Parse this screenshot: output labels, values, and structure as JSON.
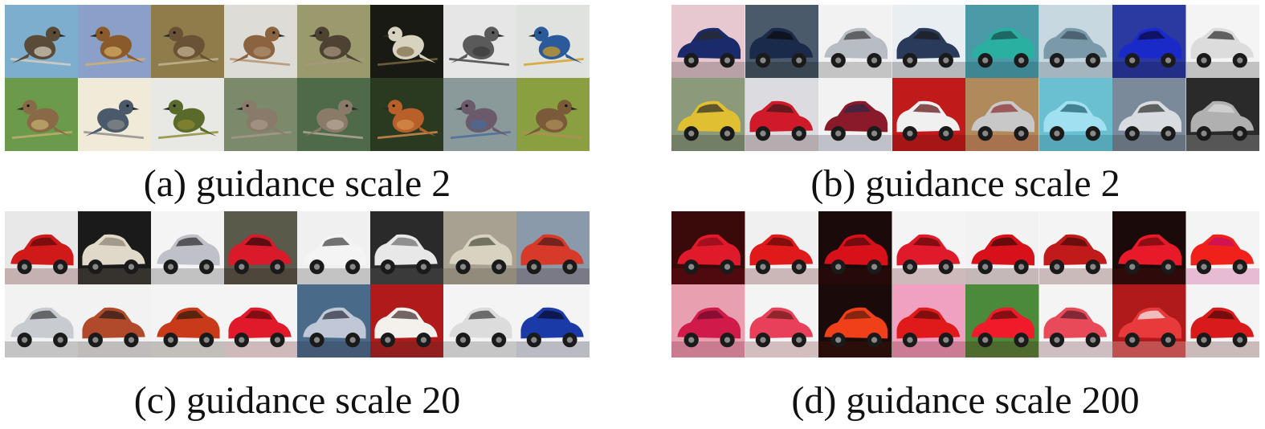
{
  "panels": [
    {
      "id": "a",
      "caption": "(a) guidance scale 2",
      "subject": "bird",
      "tiles": [
        {
          "bg": "#7eaecd",
          "fg": "#5a4a38",
          "accent": "#d9d2c0"
        },
        {
          "bg": "#8aa0c8",
          "fg": "#8a5a2a",
          "accent": "#d8b06a"
        },
        {
          "bg": "#8e7c4a",
          "fg": "#6a5236",
          "accent": "#c8b896"
        },
        {
          "bg": "#dedcd6",
          "fg": "#8a6440",
          "accent": "#b09070"
        },
        {
          "bg": "#9a9a6c",
          "fg": "#4e4232",
          "accent": "#a89880"
        },
        {
          "bg": "#1a1a14",
          "fg": "#d8d2c0",
          "accent": "#7a6a40"
        },
        {
          "bg": "#e6e6e6",
          "fg": "#5a5a5a",
          "accent": "#3a3a3a"
        },
        {
          "bg": "#e0e2e0",
          "fg": "#2a5a9a",
          "accent": "#d8a020"
        },
        {
          "bg": "#6a9a4a",
          "fg": "#8a6a46",
          "accent": "#c8b070"
        },
        {
          "bg": "#f2ead8",
          "fg": "#4a5a6a",
          "accent": "#8a8a8a"
        },
        {
          "bg": "#e8e8e4",
          "fg": "#5a6a2a",
          "accent": "#8a8a30"
        },
        {
          "bg": "#7a8a6a",
          "fg": "#8a7a6a",
          "accent": "#a89a8a"
        },
        {
          "bg": "#4e6a48",
          "fg": "#8a7a68",
          "accent": "#b8aa98"
        },
        {
          "bg": "#2a3a20",
          "fg": "#b8602a",
          "accent": "#d89050"
        },
        {
          "bg": "#8a9a9a",
          "fg": "#6a5a6a",
          "accent": "#4a6a9a"
        },
        {
          "bg": "#8aa040",
          "fg": "#7a5a38",
          "accent": "#b0905a"
        }
      ]
    },
    {
      "id": "b",
      "caption": "(b) guidance scale 2",
      "subject": "car",
      "tiles": [
        {
          "bg": "#e8c8d0",
          "fg": "#1a2a6a",
          "accent": "#2a2a2a"
        },
        {
          "bg": "#4a5a6a",
          "fg": "#1a2a4a",
          "accent": "#0a0a0a"
        },
        {
          "bg": "#f2f2f2",
          "fg": "#b8bcc4",
          "accent": "#3a3a3a"
        },
        {
          "bg": "#e8eef2",
          "fg": "#2a3a5a",
          "accent": "#1a1a1a"
        },
        {
          "bg": "#4a9aa8",
          "fg": "#2ab0a0",
          "accent": "#1a4a4a"
        },
        {
          "bg": "#c8d8e0",
          "fg": "#7a9aaa",
          "accent": "#3a4a5a"
        },
        {
          "bg": "#2a3aa0",
          "fg": "#1a2ac8",
          "accent": "#0a0a3a"
        },
        {
          "bg": "#f4f4f4",
          "fg": "#dcdcdc",
          "accent": "#2a2a2a"
        },
        {
          "bg": "#8a9a7a",
          "fg": "#e0c030",
          "accent": "#2a2a2a"
        },
        {
          "bg": "#dcdce0",
          "fg": "#d01a2a",
          "accent": "#3a1a1a"
        },
        {
          "bg": "#f2f2f2",
          "fg": "#8a1a2a",
          "accent": "#2a2a4a"
        },
        {
          "bg": "#c01a1a",
          "fg": "#f0f0f0",
          "accent": "#5a0a0a"
        },
        {
          "bg": "#b08a5a",
          "fg": "#c8c8c8",
          "accent": "#8a2a2a"
        },
        {
          "bg": "#6ac0d0",
          "fg": "#a0e0f0",
          "accent": "#1a5a6a"
        },
        {
          "bg": "#7a8a9a",
          "fg": "#d8dce0",
          "accent": "#2a2a2a"
        },
        {
          "bg": "#2a2a2a",
          "fg": "#b0b0b0",
          "accent": "#dcdcdc"
        }
      ]
    },
    {
      "id": "c",
      "caption": "(c) guidance scale 20",
      "subject": "car",
      "tiles": [
        {
          "bg": "#e8e8e8",
          "fg": "#d01a1a",
          "accent": "#5a0a0a"
        },
        {
          "bg": "#1a1a1a",
          "fg": "#e0d8c8",
          "accent": "#8a8070"
        },
        {
          "bg": "#f4f4f4",
          "fg": "#c0c0c8",
          "accent": "#2a2a2a"
        },
        {
          "bg": "#5a5a4a",
          "fg": "#d81a2a",
          "accent": "#2a0a0a"
        },
        {
          "bg": "#f0f0f0",
          "fg": "#f4f4f4",
          "accent": "#3a3a3a"
        },
        {
          "bg": "#2a2a2a",
          "fg": "#e8e8e8",
          "accent": "#6a6a6a"
        },
        {
          "bg": "#a8a090",
          "fg": "#d8d2c0",
          "accent": "#4a4a3a"
        },
        {
          "bg": "#8a9aaa",
          "fg": "#d83a2a",
          "accent": "#4a1a1a"
        },
        {
          "bg": "#f2f2f2",
          "fg": "#c8ccd0",
          "accent": "#3a3a3a"
        },
        {
          "bg": "#f2f2f2",
          "fg": "#b04a2a",
          "accent": "#2a1a1a"
        },
        {
          "bg": "#f4f4f4",
          "fg": "#c83a1a",
          "accent": "#2a1a0a"
        },
        {
          "bg": "#f4f4f4",
          "fg": "#e01a2a",
          "accent": "#5a0a0a"
        },
        {
          "bg": "#4a6a8a",
          "fg": "#c0c8d8",
          "accent": "#2a2a3a"
        },
        {
          "bg": "#b01a1a",
          "fg": "#f4f0ec",
          "accent": "#3a2a2a"
        },
        {
          "bg": "#f4f4f4",
          "fg": "#dcdcdc",
          "accent": "#3a3a3a"
        },
        {
          "bg": "#f4f4f4",
          "fg": "#1a3aa8",
          "accent": "#0a0a2a"
        }
      ]
    },
    {
      "id": "d",
      "caption": "(d) guidance scale 200",
      "subject": "car",
      "tiles": [
        {
          "bg": "#3a0a0a",
          "fg": "#e01a2a",
          "accent": "#8a0a1a"
        },
        {
          "bg": "#f0f0f0",
          "fg": "#e01a1a",
          "accent": "#5a0a0a"
        },
        {
          "bg": "#1a0a0a",
          "fg": "#d8101a",
          "accent": "#4a0a0a"
        },
        {
          "bg": "#f4f4f4",
          "fg": "#e01a2a",
          "accent": "#5a0a0a"
        },
        {
          "bg": "#f2f2f2",
          "fg": "#d8101a",
          "accent": "#3a0a0a"
        },
        {
          "bg": "#f4f4f4",
          "fg": "#c01a1a",
          "accent": "#4a0a0a"
        },
        {
          "bg": "#1a0a0a",
          "fg": "#e81a2a",
          "accent": "#6a0a0a"
        },
        {
          "bg": "#f4f4f4",
          "fg": "#f0201a",
          "accent": "#c0106a"
        },
        {
          "bg": "#e8a0b0",
          "fg": "#d01a4a",
          "accent": "#6a0a2a"
        },
        {
          "bg": "#f4f4f4",
          "fg": "#e8405a",
          "accent": "#6a1a1a"
        },
        {
          "bg": "#1a0a0a",
          "fg": "#f0401a",
          "accent": "#5a1a0a"
        },
        {
          "bg": "#f0a0c0",
          "fg": "#e01a1a",
          "accent": "#5a0a0a"
        },
        {
          "bg": "#4a8a3a",
          "fg": "#f01a2a",
          "accent": "#5a0a0a"
        },
        {
          "bg": "#f4f4f4",
          "fg": "#e84a5a",
          "accent": "#5a1a2a"
        },
        {
          "bg": "#b01a1a",
          "fg": "#e83a3a",
          "accent": "#f4f4f4"
        },
        {
          "bg": "#f4f4f4",
          "fg": "#d81a1a",
          "accent": "#4a0a0a"
        }
      ]
    }
  ]
}
